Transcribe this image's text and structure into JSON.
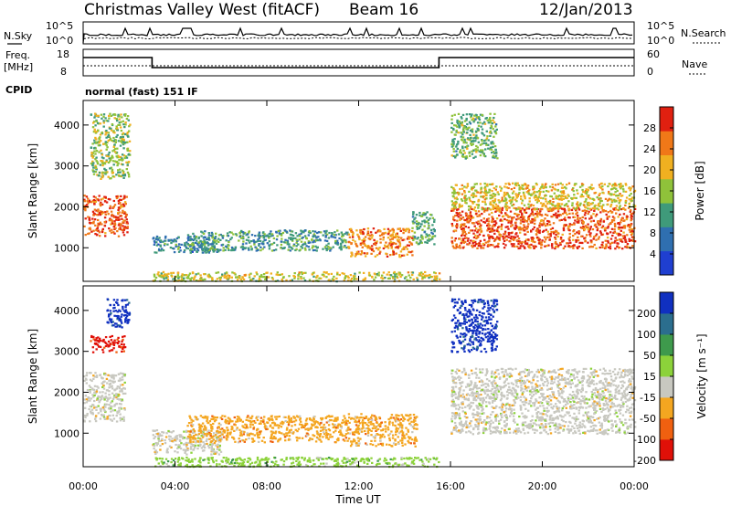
{
  "header": {
    "station": "Christmas Valley West (fitACF)",
    "beam": "Beam 16",
    "date": "12/Jan/2013"
  },
  "status_panel": {
    "nsky_label": "N.Sky",
    "nsky_ticks": [
      "10^5",
      "10^0"
    ],
    "nsearch_label": "N.Search",
    "nsearch_ticks": [
      "10^5",
      "10^0"
    ],
    "freq_label_1": "Freq.",
    "freq_label_2": "[MHz]",
    "freq_ticks": [
      "18",
      "8"
    ],
    "nave_label": "Nave",
    "nave_ticks": [
      "60",
      "0"
    ],
    "cpid_label": "CPID",
    "cpid_value": "normal (fast) 151 IF"
  },
  "chart_data": [
    {
      "type": "heatmap",
      "name": "power",
      "ylabel": "Slant Range [km]",
      "yticks": [
        "1000",
        "2000",
        "3000",
        "4000"
      ],
      "ylim": [
        180,
        4600
      ],
      "xlim": [
        0,
        24
      ],
      "colorbar_label": "Power [dB]",
      "colorbar_ticks": [
        "4",
        "8",
        "12",
        "16",
        "20",
        "24",
        "28"
      ],
      "colorbar_range": [
        0,
        32
      ],
      "colorbar_colors": [
        "#1f3fd0",
        "#2f6fb0",
        "#3f9a7a",
        "#8fc23a",
        "#f0b020",
        "#f07818",
        "#e02010"
      ],
      "regions": [
        {
          "t0": 0.0,
          "t1": 1.9,
          "r0": 1300,
          "r1": 2300,
          "level": 27
        },
        {
          "t0": 0.3,
          "t1": 2.0,
          "r0": 2700,
          "r1": 4300,
          "level": 16
        },
        {
          "t0": 3.0,
          "t1": 6.0,
          "r0": 900,
          "r1": 1300,
          "level": 9
        },
        {
          "t0": 4.5,
          "t1": 11.5,
          "r0": 950,
          "r1": 1450,
          "level": 11
        },
        {
          "t0": 11.5,
          "t1": 14.3,
          "r0": 800,
          "r1": 1500,
          "level": 24
        },
        {
          "t0": 14.3,
          "t1": 15.3,
          "r0": 1100,
          "r1": 1900,
          "level": 13
        },
        {
          "t0": 3.0,
          "t1": 15.5,
          "r0": 200,
          "r1": 430,
          "level": 18
        },
        {
          "t0": 16.0,
          "t1": 24.0,
          "r0": 1000,
          "r1": 2000,
          "level": 27
        },
        {
          "t0": 16.0,
          "t1": 24.0,
          "r0": 1950,
          "r1": 2600,
          "level": 19
        },
        {
          "t0": 16.0,
          "t1": 18.0,
          "r0": 3200,
          "r1": 4300,
          "level": 14
        }
      ]
    },
    {
      "type": "heatmap",
      "name": "velocity",
      "ylabel": "Slant Range [km]",
      "yticks": [
        "1000",
        "2000",
        "3000",
        "4000"
      ],
      "ylim": [
        180,
        4600
      ],
      "xlim": [
        0,
        24
      ],
      "colorbar_label": "Velocity [m s⁻¹]",
      "colorbar_ticks": [
        "200",
        "100",
        "50",
        "15",
        "-15",
        "-50",
        "-100",
        "-200"
      ],
      "colorbar_colors": [
        "#1030c0",
        "#2b6e8e",
        "#3e9a4c",
        "#8cd23a",
        "#c8c8c0",
        "#f4a620",
        "#f06010",
        "#e01008"
      ],
      "regions": [
        {
          "t0": 0.0,
          "t1": 1.8,
          "r0": 1300,
          "r1": 2500,
          "cls": 4
        },
        {
          "t0": 0.2,
          "t1": 1.8,
          "r0": 3000,
          "r1": 3400,
          "cls": 7
        },
        {
          "t0": 1.0,
          "t1": 2.0,
          "r0": 3600,
          "r1": 4300,
          "cls": 0
        },
        {
          "t0": 3.0,
          "t1": 6.0,
          "r0": 500,
          "r1": 1100,
          "cls": 4
        },
        {
          "t0": 4.5,
          "t1": 11.5,
          "r0": 800,
          "r1": 1450,
          "cls": 5
        },
        {
          "t0": 11.5,
          "t1": 14.5,
          "r0": 700,
          "r1": 1500,
          "cls": 5
        },
        {
          "t0": 3.0,
          "t1": 15.5,
          "r0": 200,
          "r1": 430,
          "cls": 3
        },
        {
          "t0": 16.0,
          "t1": 24.0,
          "r0": 1000,
          "r1": 2600,
          "cls": 4
        },
        {
          "t0": 16.0,
          "t1": 18.0,
          "r0": 3000,
          "r1": 4300,
          "cls": 0
        }
      ]
    }
  ],
  "x_axis": {
    "label": "Time UT",
    "ticks": [
      "00:00",
      "04:00",
      "08:00",
      "12:00",
      "16:00",
      "20:00",
      "00:00"
    ]
  }
}
